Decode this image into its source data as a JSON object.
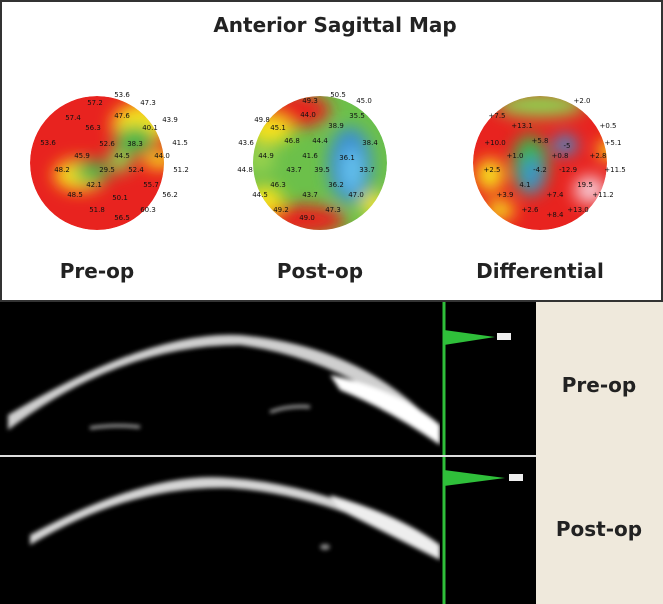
{
  "header": {
    "title": "Anterior Sagittal Map"
  },
  "maps": [
    {
      "label": "Pre-op",
      "values": [
        "57.2",
        "53.6",
        "47.3",
        "57.4",
        "47.6",
        "56.3",
        "40.1",
        "43.9",
        "52.6",
        "38.3",
        "53.6",
        "45.9",
        "44.5",
        "44.0",
        "41.5",
        "48.2",
        "29.5",
        "52.4",
        "51.2",
        "42.1",
        "55.7",
        "48.5",
        "50.1",
        "56.2",
        "51.8",
        "60.3",
        "56.5"
      ]
    },
    {
      "label": "Post-op",
      "values": [
        "49.3",
        "50.5",
        "45.0",
        "49.8",
        "44.0",
        "35.5",
        "45.1",
        "38.9",
        "43.6",
        "46.8",
        "44.4",
        "38.4",
        "44.9",
        "41.6",
        "36.1",
        "44.8",
        "43.7",
        "39.5",
        "33.7",
        "46.3",
        "36.2",
        "44.5",
        "43.7",
        "47.0",
        "49.2",
        "49.0",
        "47.3"
      ]
    },
    {
      "label": "Differential",
      "values": [
        "+7.5",
        "+2.0",
        "+13.1",
        "+0.5",
        "+10.0",
        "+5.8",
        "-5",
        "+5.1",
        "+1.0",
        "+0.8",
        "+2.8",
        "+2.5",
        "-4.2",
        "-12.9",
        "+11.5",
        "4.1",
        "19.5",
        "+3.9",
        "+7.4",
        "+11.2",
        "+2.6",
        "+8.4",
        "+13.0"
      ]
    }
  ],
  "oct_rows": [
    {
      "label": "Pre-op"
    },
    {
      "label": "Post-op"
    }
  ]
}
